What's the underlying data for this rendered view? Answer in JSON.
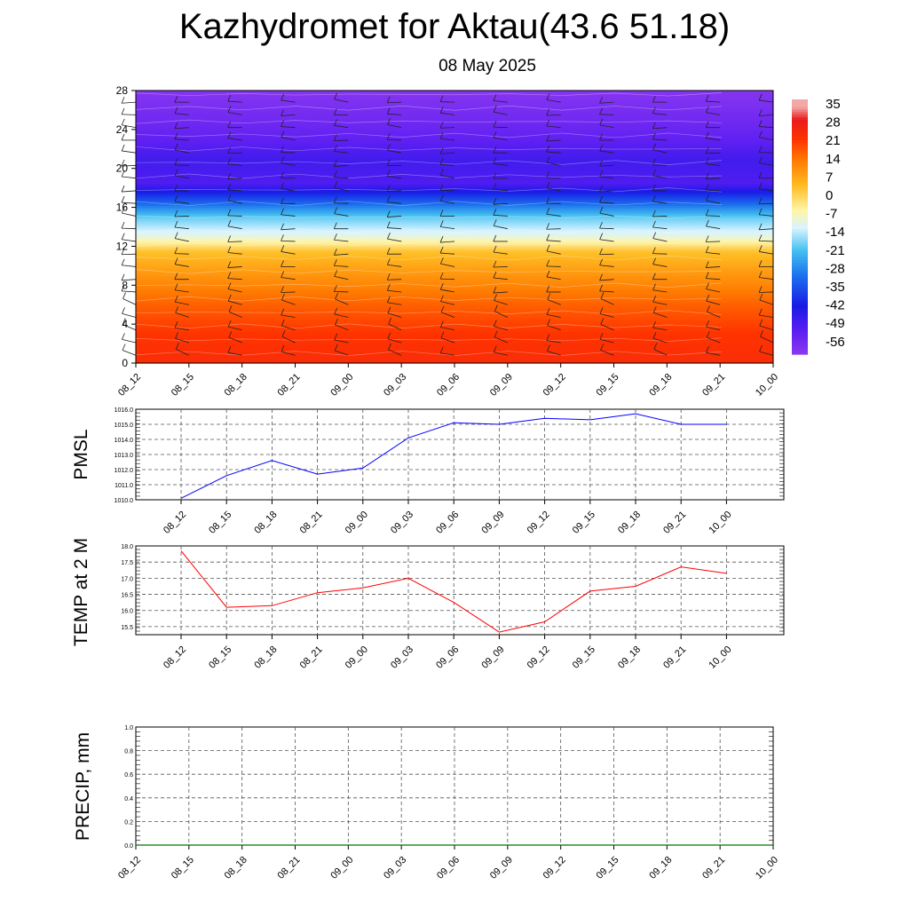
{
  "title": "Kazhydromet for Aktau(43.6 51.18)",
  "subtitle": "08 May 2025",
  "chart_data": [
    {
      "type": "heatmap",
      "name": "temperature-profile",
      "y_ticks": [
        "0",
        "4",
        "8",
        "12",
        "16",
        "20",
        "24",
        "28"
      ],
      "ylim": [
        0,
        28
      ],
      "x_ticks": [
        "08_12",
        "08_15",
        "08_18",
        "08_21",
        "09_00",
        "09_03",
        "09_06",
        "09_09",
        "09_12",
        "09_15",
        "09_18",
        "09_21",
        "10_00"
      ],
      "colorbar": {
        "labels": [
          "35",
          "28",
          "21",
          "14",
          "7",
          "0",
          "-7",
          "-14",
          "-21",
          "-28",
          "-35",
          "-42",
          "-49",
          "-56"
        ],
        "range": [
          -63,
          38
        ]
      },
      "color_stops": [
        {
          "value": 35,
          "color": "#f3a8a8"
        },
        {
          "value": 30,
          "color": "#ea1b1b"
        },
        {
          "value": 22,
          "color": "#ff3300"
        },
        {
          "value": 14,
          "color": "#ff7a00"
        },
        {
          "value": 4,
          "color": "#ffbb22"
        },
        {
          "value": -6,
          "color": "#fff5a8"
        },
        {
          "value": -13,
          "color": "#d8f4ff"
        },
        {
          "value": -22,
          "color": "#44c0f0"
        },
        {
          "value": -32,
          "color": "#1c70ee"
        },
        {
          "value": -44,
          "color": "#1a1ae6"
        },
        {
          "value": -54,
          "color": "#5c1ef2"
        },
        {
          "value": -63,
          "color": "#8a38f0"
        }
      ],
      "profile": [
        {
          "level": 0,
          "value": 24
        },
        {
          "level": 3,
          "value": 22
        },
        {
          "level": 6,
          "value": 17
        },
        {
          "level": 9,
          "value": 10
        },
        {
          "level": 11.5,
          "value": 3
        },
        {
          "level": 13,
          "value": -10
        },
        {
          "level": 15,
          "value": -20
        },
        {
          "level": 17,
          "value": -38
        },
        {
          "level": 18.5,
          "value": -52
        },
        {
          "level": 21,
          "value": -50
        },
        {
          "level": 23,
          "value": -55
        },
        {
          "level": 25,
          "value": -58
        },
        {
          "level": 28,
          "value": -62
        }
      ]
    },
    {
      "type": "line",
      "name": "pmsl",
      "ylabel": "PMSL",
      "categories": [
        "08_12",
        "08_15",
        "08_18",
        "08_21",
        "09_00",
        "09_03",
        "09_06",
        "09_09",
        "09_12",
        "09_15",
        "09_18",
        "09_21",
        "10_00"
      ],
      "y_ticks": [
        "1010.0",
        "1011.0",
        "1012.0",
        "1013.0",
        "1014.0",
        "1015.0",
        "1016.0"
      ],
      "ylim": [
        1010,
        1016
      ],
      "color": "#0000ff",
      "values": [
        1010.1,
        1011.6,
        1012.6,
        1011.7,
        1012.1,
        1014.1,
        1015.1,
        1015.0,
        1015.4,
        1015.3,
        1015.7,
        1015.0,
        1015.0
      ]
    },
    {
      "type": "line",
      "name": "temp2m",
      "ylabel": "TEMP at 2 M",
      "categories": [
        "08_12",
        "08_15",
        "08_18",
        "08_21",
        "09_00",
        "09_03",
        "09_06",
        "09_09",
        "09_12",
        "09_15",
        "09_18",
        "09_21",
        "10_00"
      ],
      "y_ticks": [
        "15.5",
        "16.0",
        "16.5",
        "17.0",
        "17.5",
        "18.0"
      ],
      "ylim": [
        15.25,
        18.0
      ],
      "color": "#ff0000",
      "values": [
        17.85,
        16.1,
        16.15,
        16.55,
        16.7,
        17.0,
        16.25,
        15.33,
        15.65,
        16.6,
        16.75,
        17.35,
        17.15
      ]
    },
    {
      "type": "line",
      "name": "precip",
      "ylabel": "PRECIP, mm",
      "x_ticks": [
        "08_12",
        "08_15",
        "08_18",
        "08_21",
        "09_00",
        "09_03",
        "09_06",
        "09_09",
        "09_12",
        "09_15",
        "09_18",
        "09_21",
        "10_00"
      ],
      "y_ticks": [
        "0.0",
        "0.2",
        "0.4",
        "0.6",
        "0.8",
        "1.0"
      ],
      "ylim": [
        0,
        1
      ],
      "color": "#007700",
      "values": [
        0,
        0,
        0,
        0,
        0,
        0,
        0,
        0,
        0,
        0,
        0,
        0
      ]
    }
  ]
}
